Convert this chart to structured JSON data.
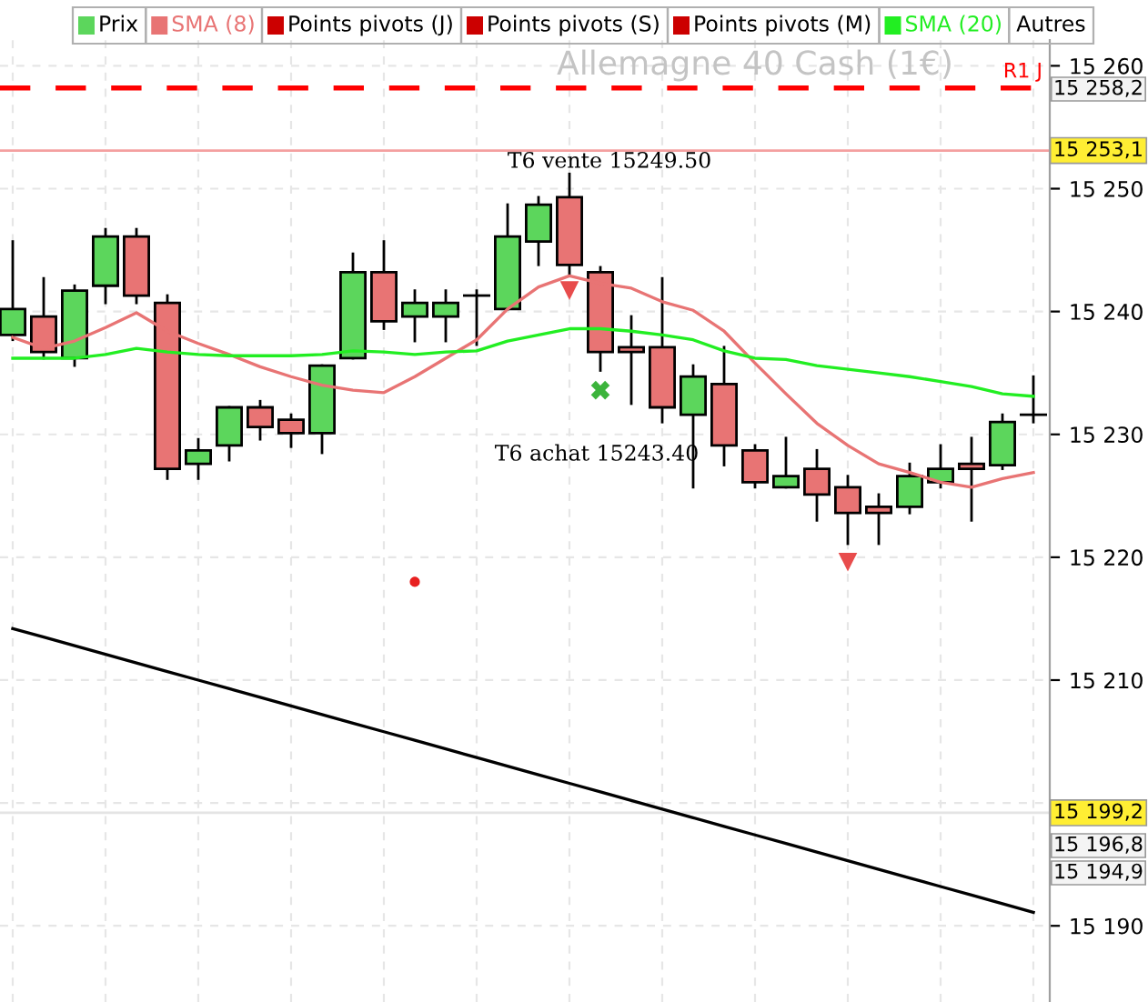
{
  "chart_data": {
    "type": "candlestick",
    "title": "Allemagne 40 Cash (1€)",
    "categories": [
      null,
      null,
      null,
      null,
      null,
      null,
      null,
      null,
      null,
      null,
      null,
      null,
      null,
      null,
      null,
      null,
      null,
      null,
      null,
      null,
      null,
      null,
      null,
      null,
      null,
      null,
      null,
      null,
      null,
      null,
      null,
      null,
      null,
      null
    ],
    "series": [
      {
        "name": "Prix",
        "color": "#5cd65c",
        "ohlc": [
          [
            15238.1,
            15245.7,
            15237.7,
            15240.2
          ],
          [
            15239.6,
            15242.7,
            15236.2,
            15236.7
          ],
          [
            15236.2,
            15242.1,
            15235.6,
            15241.7
          ],
          [
            15242.1,
            15246.7,
            15240.7,
            15246.1
          ],
          [
            15246.1,
            15246.7,
            15240.7,
            15241.3
          ],
          [
            15240.7,
            15241.3,
            15226.4,
            15227.2
          ],
          [
            15227.6,
            15229.6,
            15226.4,
            15228.7
          ],
          [
            15229.1,
            15232.2,
            15227.9,
            15232.2
          ],
          [
            15232.2,
            15232.7,
            15229.6,
            15230.6
          ],
          [
            15231.2,
            15231.6,
            15229.0,
            15230.1
          ],
          [
            15230.1,
            15235.6,
            15228.5,
            15235.6
          ],
          [
            15236.2,
            15244.7,
            15236.2,
            15243.2
          ],
          [
            15243.2,
            15245.7,
            15238.6,
            15239.2
          ],
          [
            15239.6,
            15241.7,
            15237.6,
            15240.7
          ],
          [
            15239.6,
            15241.7,
            15237.6,
            15240.7
          ],
          [
            15241.3,
            15241.7,
            15237.3,
            15241.3
          ],
          [
            15240.2,
            15248.7,
            15240.2,
            15246.1
          ],
          [
            15245.7,
            15249.3,
            15243.8,
            15248.7
          ],
          [
            15249.3,
            15251.2,
            15243.0,
            15243.8
          ],
          [
            15243.2,
            15243.6,
            15235.2,
            15236.7
          ],
          [
            15237.1,
            15239.6,
            15232.5,
            15236.7
          ],
          [
            15237.1,
            15242.7,
            15231.0,
            15232.2
          ],
          [
            15231.6,
            15235.6,
            15225.7,
            15234.7
          ],
          [
            15234.1,
            15237.1,
            15227.5,
            15229.1
          ],
          [
            15228.7,
            15229.1,
            15225.7,
            15226.1
          ],
          [
            15225.7,
            15229.7,
            15225.7,
            15226.6
          ],
          [
            15227.2,
            15228.7,
            15223.0,
            15225.1
          ],
          [
            15225.7,
            15226.6,
            15221.1,
            15223.6
          ],
          [
            15224.1,
            15225.1,
            15221.1,
            15223.6
          ],
          [
            15224.1,
            15227.6,
            15223.6,
            15226.6
          ],
          [
            15226.1,
            15229.1,
            15225.7,
            15227.2
          ],
          [
            15227.6,
            15229.7,
            15223.0,
            15227.2
          ],
          [
            15227.5,
            15231.6,
            15227.2,
            15231.0
          ],
          [
            15231.6,
            15234.7,
            15231.0,
            15231.6
          ]
        ],
        "colors": [
          "#5cd65c",
          "#e87474",
          "#5cd65c",
          "#5cd65c",
          "#e87474",
          "#e87474",
          "#5cd65c",
          "#5cd65c",
          "#e87474",
          "#e87474",
          "#5cd65c",
          "#5cd65c",
          "#e87474",
          "#5cd65c",
          "#5cd65c",
          "#000000",
          "#5cd65c",
          "#5cd65c",
          "#e87474",
          "#e87474",
          "#e87474",
          "#e87474",
          "#5cd65c",
          "#e87474",
          "#e87474",
          "#5cd65c",
          "#e87474",
          "#e87474",
          "#e87474",
          "#5cd65c",
          "#5cd65c",
          "#e87474",
          "#5cd65c",
          "#000000"
        ]
      },
      {
        "name": "SMA (8)",
        "type": "line",
        "color": "#e87474",
        "values": [
          15237.9,
          15237.0,
          15237.6,
          15238.7,
          15239.9,
          15238.4,
          15237.4,
          15236.5,
          15235.5,
          15234.7,
          15234.0,
          15233.6,
          15233.4,
          15234.7,
          15236.2,
          15237.7,
          15240.2,
          15242.0,
          15242.9,
          15242.3,
          15241.9,
          15240.8,
          15240.1,
          15238.4,
          15235.8,
          15233.3,
          15230.9,
          15229.1,
          15227.6,
          15226.9,
          15226.1,
          15225.7,
          15226.4,
          15226.9
        ]
      },
      {
        "name": "SMA (20)",
        "type": "line",
        "color": "#22ee22",
        "values": [
          15236.2,
          15236.2,
          15236.2,
          15236.5,
          15237.0,
          15236.7,
          15236.5,
          15236.4,
          15236.4,
          15236.4,
          15236.5,
          15236.8,
          15236.7,
          15236.5,
          15236.7,
          15236.8,
          15237.6,
          15238.1,
          15238.6,
          15238.6,
          15238.4,
          15238.1,
          15237.7,
          15236.8,
          15236.2,
          15236.1,
          15235.6,
          15235.3,
          15235.0,
          15234.7,
          15234.3,
          15233.9,
          15233.3,
          15233.1
        ]
      },
      {
        "type": "line",
        "color": "#000000",
        "values": [
          15214.2,
          15213.5,
          15212.8,
          15212.1,
          15211.4,
          15210.7,
          15210.0,
          15209.3,
          15208.6,
          15207.9,
          15207.2,
          15206.5,
          15205.8,
          15205.1,
          15204.4,
          15203.7,
          15203.0,
          15202.3,
          15201.6,
          15200.9,
          15200.2,
          15199.5,
          15198.8,
          15198.1,
          15197.4,
          15196.7,
          15196.0,
          15195.3,
          15194.6,
          15193.9,
          15193.2,
          15192.5,
          15191.8,
          15191.1
        ]
      },
      {
        "type": "scatter",
        "marker": "triangle",
        "color": "#e84c4c",
        "values": [
          null,
          null,
          null,
          null,
          null,
          null,
          null,
          null,
          null,
          null,
          null,
          null,
          null,
          null,
          null,
          null,
          null,
          null,
          15241.7,
          null,
          null,
          null,
          null,
          null,
          null,
          null,
          null,
          15219.6,
          null,
          null,
          null,
          null,
          null,
          null
        ]
      },
      {
        "type": "scatter",
        "marker": "cross",
        "color": "#3cb43c",
        "values": [
          null,
          null,
          null,
          null,
          null,
          null,
          null,
          null,
          null,
          null,
          null,
          null,
          null,
          null,
          null,
          null,
          null,
          null,
          null,
          15233.6,
          null,
          null,
          null,
          null,
          null,
          null,
          null,
          null,
          null,
          null,
          null,
          null,
          null,
          null
        ]
      },
      {
        "type": "scatter",
        "marker": "circle",
        "color": "#e82020",
        "values": [
          null,
          null,
          null,
          null,
          null,
          null,
          null,
          null,
          null,
          null,
          null,
          null,
          null,
          15218.0,
          null,
          null,
          null,
          null,
          null,
          null,
          null,
          null,
          null,
          null,
          null,
          null,
          null,
          null,
          null,
          null,
          null,
          null,
          null,
          null
        ]
      }
    ],
    "ylim": [
      15183.8,
      15262.1
    ],
    "yticks": [
      {
        "value": 15190,
        "label": "15 190"
      },
      {
        "value": 15200,
        "label": null
      },
      {
        "value": 15210,
        "label": "15 210"
      },
      {
        "value": 15220,
        "label": "15 220"
      },
      {
        "value": 15230,
        "label": "15 230"
      },
      {
        "value": 15240,
        "label": "15 240"
      },
      {
        "value": 15250,
        "label": "15 250"
      },
      {
        "value": 15260,
        "label": "15 260"
      }
    ],
    "ref_lines": [
      {
        "axis": "y",
        "value": 15258.2,
        "label": "R1 J",
        "color": "#ff0000",
        "line_style": "dashed"
      },
      {
        "axis": "y",
        "value": 15253.1,
        "label": "15 253,1",
        "color": "#f4a0a0",
        "line_style": "solid"
      },
      {
        "axis": "y",
        "value": 15199.2,
        "label": "15 199,2",
        "color": "#e4e4e4",
        "line_style": "solid"
      }
    ],
    "annotations": [
      "Points pivots (J)",
      "Points pivots (S)",
      "Points pivots (M)",
      "Autres",
      "T6 vente 15249.50",
      "T6 achat 15243.40",
      "15 258,2",
      "15 196,8",
      "15 194,9"
    ],
    "grid": true,
    "legend": "top",
    "tick_labels": "y"
  }
}
